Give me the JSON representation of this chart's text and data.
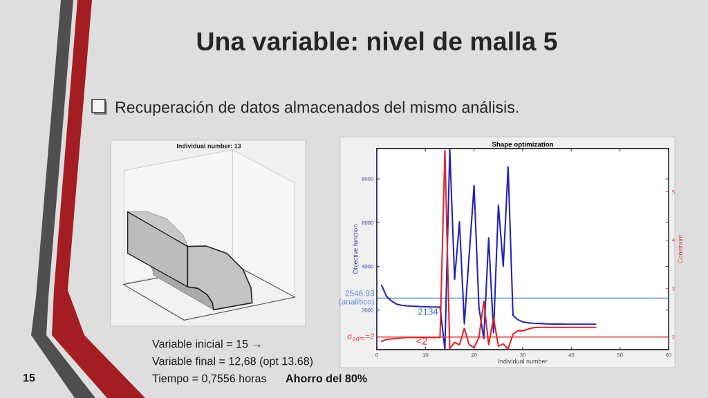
{
  "chart_data": [
    {
      "type": "other",
      "title": "Una variable: nivel de malla 5",
      "subtitle": "Recuperación de datos almacenados del mismo análisis.",
      "annotations": [
        "Variable inicial = 15 →",
        "Variable final = 12,68 (opt 13.68)",
        "Tiempo = 0,7556 horas",
        "Ahorro del 80%",
        "15"
      ]
    },
    {
      "type": "other",
      "title": "Individual number: 13"
    },
    {
      "type": "line",
      "title": "Shape optimization",
      "xlabel": "Individual number",
      "ylabel": "Objective function",
      "y2label": "Constraint",
      "x": [
        1,
        2,
        3,
        4,
        5,
        6,
        7,
        8,
        9,
        10,
        11,
        12,
        13,
        14,
        15,
        16,
        17,
        18,
        19,
        20,
        21,
        22,
        23,
        24,
        25,
        26,
        27,
        28,
        29,
        30,
        31,
        32,
        33,
        34,
        35,
        36,
        37,
        38,
        39,
        40,
        41,
        42,
        43,
        44,
        45
      ],
      "xlim": [
        0,
        60
      ],
      "xticks": [
        0,
        10,
        20,
        30,
        40,
        50,
        60
      ],
      "ylim": [
        190,
        9390
      ],
      "yticks": [
        2000,
        4000,
        6000,
        8000
      ],
      "y2lim": [
        1.74,
        5.89
      ],
      "y2ticks": [
        2,
        3,
        4,
        5
      ],
      "series": [
        {
          "color": "#2323b4",
          "values": [
            3130,
            2620,
            2420,
            2280,
            2220,
            2200,
            2180,
            2170,
            2160,
            2150,
            2140,
            2140,
            2130,
            200,
            9350,
            3410,
            6040,
            1370,
            4540,
            7700,
            2120,
            690,
            5300,
            970,
            6800,
            4000,
            8550,
            1760,
            1560,
            1460,
            1420,
            1400,
            1390,
            1380,
            1370,
            1360,
            1360,
            1360,
            1350,
            1350,
            1350,
            1350,
            1350,
            1350,
            1350
          ]
        },
        {
          "color": "#e2262b",
          "axis": "y2",
          "values": [
            1.91,
            1.95,
            1.96,
            1.97,
            1.98,
            1.99,
            1.99,
            1.99,
            1.99,
            1.99,
            1.99,
            1.99,
            1.99,
            5.85,
            1.76,
            1.89,
            1.84,
            2.18,
            1.84,
            1.78,
            1.99,
            2.74,
            1.84,
            2.4,
            1.81,
            1.86,
            1.75,
            2.06,
            2.13,
            2.13,
            2.16,
            2.19,
            2.2,
            2.2,
            2.2,
            2.2,
            2.2,
            2.2,
            2.2,
            2.2,
            2.2,
            2.2,
            2.2,
            2.2,
            2.2
          ]
        }
      ],
      "ref_lines": [
        {
          "axis": "y",
          "value": 2546.93,
          "label": "2546.93\n(analítico)",
          "color": "#5f8ccb"
        },
        {
          "axis": "y2",
          "value": 2,
          "label": "σ$_{adm}$=2",
          "color": "#e03a3a"
        }
      ],
      "annotations": [
        {
          "text": "2134",
          "x": 13,
          "y": 2134
        },
        "<2"
      ]
    }
  ]
}
